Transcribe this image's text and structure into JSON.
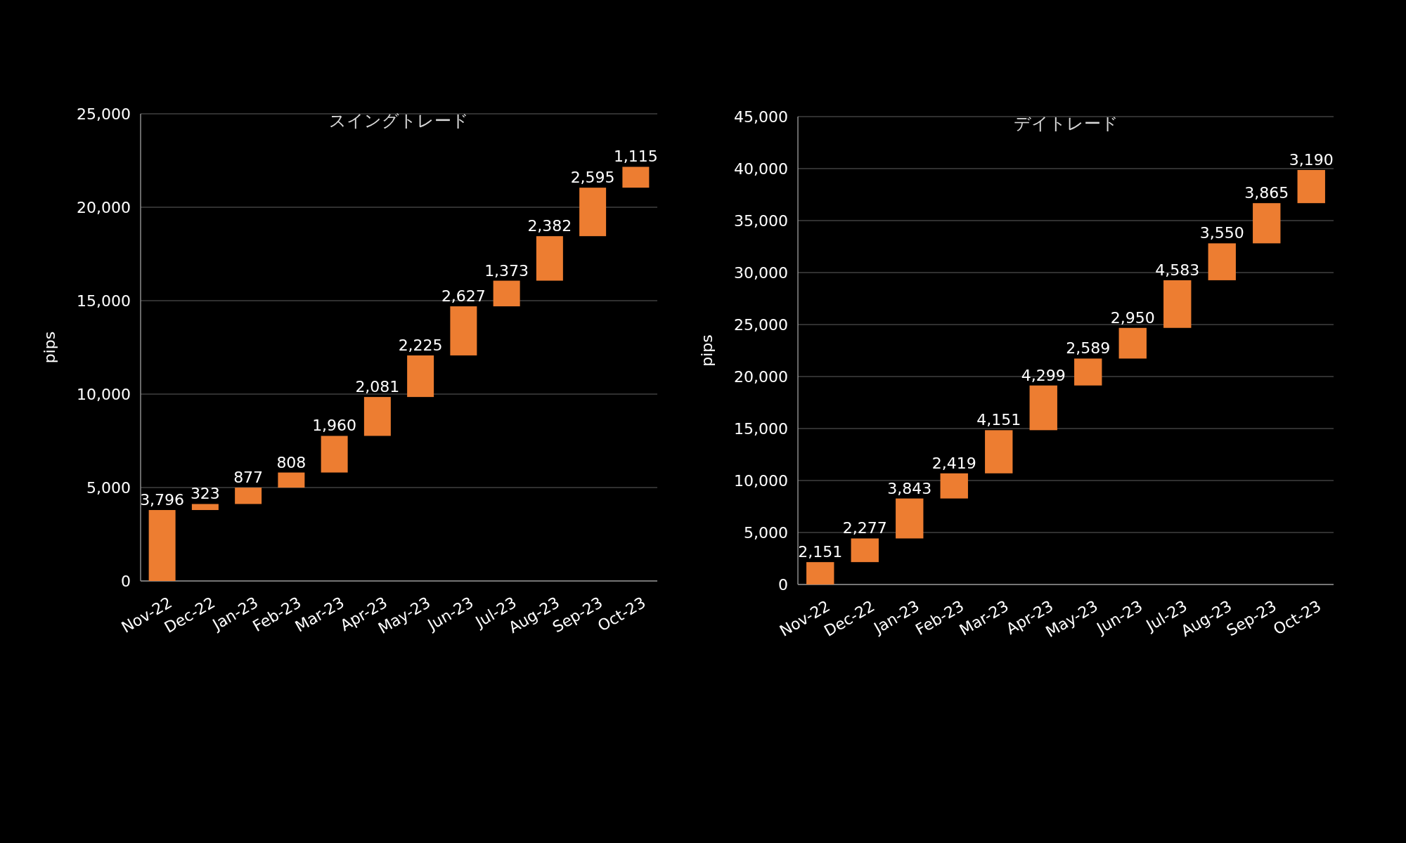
{
  "chart_data": [
    {
      "type": "bar",
      "title": "スイングトレード",
      "ylabel": "pips",
      "categories": [
        "Nov-22",
        "Dec-22",
        "Jan-23",
        "Feb-23",
        "Mar-23",
        "Apr-23",
        "May-23",
        "Jun-23",
        "Jul-23",
        "Aug-23",
        "Sep-23",
        "Oct-23"
      ],
      "values": [
        3796,
        323,
        877,
        808,
        1960,
        2081,
        2225,
        2627,
        1373,
        2382,
        2595,
        1115
      ],
      "base": [
        0,
        3796,
        4119,
        4996,
        5804,
        7764,
        9845,
        12070,
        14697,
        16070,
        18452,
        21047
      ],
      "value_labels": [
        "3,796",
        "323",
        "877",
        "808",
        "1,960",
        "2,081",
        "2,225",
        "2,627",
        "1,373",
        "2,382",
        "2,595",
        "1,115"
      ],
      "color": "#ed7d31",
      "ylim": [
        0,
        25000
      ],
      "yticks": [
        0,
        {
          "value": 5000,
          "label": "5,000"
        },
        {
          "value": 10000,
          "label": "10,000"
        },
        {
          "value": 15000,
          "label": "15,000"
        },
        {
          "value": 20000,
          "label": "20,000"
        },
        {
          "value": 25000,
          "label": "25,000"
        }
      ],
      "grid": "y"
    },
    {
      "type": "bar",
      "title": "デイトレード",
      "ylabel": "pips",
      "categories": [
        "Nov-22",
        "Dec-22",
        "Jan-23",
        "Feb-23",
        "Mar-23",
        "Apr-23",
        "May-23",
        "Jun-23",
        "Jul-23",
        "Aug-23",
        "Sep-23",
        "Oct-23"
      ],
      "values": [
        2151,
        2277,
        3843,
        2419,
        4151,
        4299,
        2589,
        2950,
        4583,
        3550,
        3865,
        3190
      ],
      "base": [
        0,
        2151,
        4428,
        8271,
        10690,
        14841,
        19140,
        21729,
        24679,
        29262,
        32812,
        36677
      ],
      "value_labels": [
        "2,151",
        "2,277",
        "3,843",
        "2,419",
        "4,151",
        "4,299",
        "2,589",
        "2,950",
        "4,583",
        "3,550",
        "3,865",
        "3,190"
      ],
      "color": "#ed7d31",
      "ylim": [
        0,
        45000
      ],
      "yticks": [
        0,
        {
          "value": 5000,
          "label": "5,000"
        },
        {
          "value": 10000,
          "label": "10,000"
        },
        {
          "value": 15000,
          "label": "15,000"
        },
        {
          "value": 20000,
          "label": "20,000"
        },
        {
          "value": 25000,
          "label": "25,000"
        },
        {
          "value": 30000,
          "label": "30,000"
        },
        {
          "value": 35000,
          "label": "35,000"
        },
        {
          "value": 40000,
          "label": "40,000"
        },
        {
          "value": 45000,
          "label": "45,000"
        }
      ],
      "grid": "y"
    }
  ]
}
